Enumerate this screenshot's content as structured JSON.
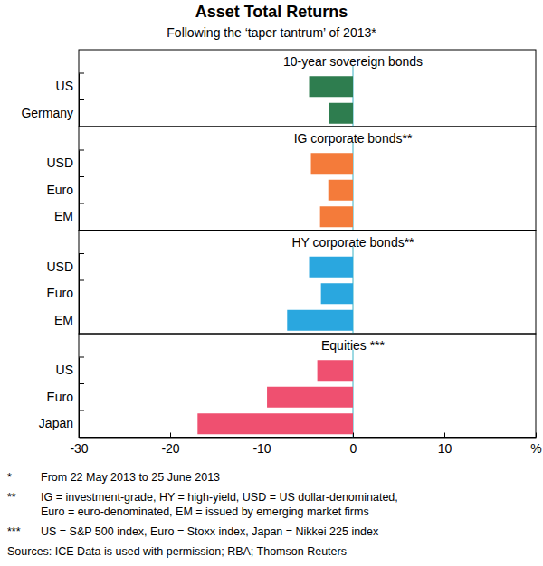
{
  "title": "Asset Total Returns",
  "subtitle": "Following the ‘taper tantrum’ of 2013*",
  "notes": [
    {
      "marker": "*",
      "lines": [
        "From 22 May 2013 to 25 June 2013"
      ]
    },
    {
      "marker": "**",
      "lines": [
        "IG = investment-grade, HY = high-yield, USD = US dollar-denominated,",
        "Euro = euro-denominated, EM = issued by emerging market firms"
      ]
    },
    {
      "marker": "***",
      "lines": [
        "US = S&P 500 index, Euro = Stoxx index, Japan = Nikkei 225 index"
      ]
    }
  ],
  "sources": "Sources: ICE Data is used with permission; RBA; Thomson Reuters",
  "chart_data": [
    {
      "type": "bar",
      "orientation": "horizontal",
      "title": "10-year sovereign bonds",
      "categories": [
        "US",
        "Germany"
      ],
      "values": [
        -4.8,
        -2.6
      ],
      "color": "#2e7d4f",
      "xlim": [
        -30,
        20
      ],
      "tick_labels": "y"
    },
    {
      "type": "bar",
      "orientation": "horizontal",
      "title": "IG corporate bonds**",
      "categories": [
        "USD",
        "Euro",
        "EM"
      ],
      "values": [
        -4.6,
        -2.7,
        -3.6
      ],
      "color": "#f47b3a",
      "xlim": [
        -30,
        20
      ],
      "tick_labels": "y"
    },
    {
      "type": "bar",
      "orientation": "horizontal",
      "title": "HY corporate bonds**",
      "categories": [
        "USD",
        "Euro",
        "EM"
      ],
      "values": [
        -4.8,
        -3.5,
        -7.2
      ],
      "color": "#2aa7df",
      "xlim": [
        -30,
        20
      ],
      "tick_labels": "y"
    },
    {
      "type": "bar",
      "orientation": "horizontal",
      "title": "Equities ***",
      "categories": [
        "US",
        "Euro",
        "Japan"
      ],
      "values": [
        -3.9,
        -9.4,
        -17.0
      ],
      "color": "#ef5070",
      "xlim": [
        -30,
        20
      ],
      "xticks": [
        -30,
        -20,
        -10,
        0,
        10,
        {
          "value": 20,
          "label": "%"
        }
      ],
      "tick_labels": true
    }
  ]
}
